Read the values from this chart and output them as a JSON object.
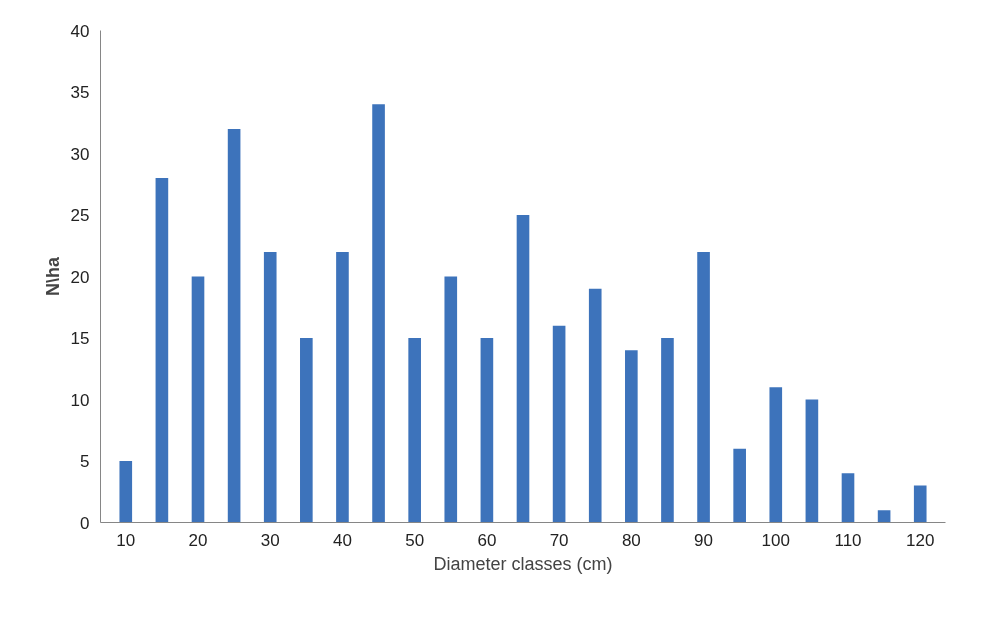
{
  "chart_data": {
    "type": "bar",
    "xlabel": "Diameter classes (cm)",
    "ylabel": "N\\ha",
    "categories": [
      "10",
      null,
      "20",
      null,
      "30",
      null,
      "40",
      null,
      "50",
      null,
      "60",
      null,
      "70",
      null,
      "80",
      null,
      "90",
      null,
      "100",
      null,
      "110",
      null,
      "120"
    ],
    "values": [
      5,
      28,
      20,
      32,
      22,
      15,
      22,
      34,
      15,
      20,
      15,
      25,
      16,
      19,
      14,
      15,
      22,
      6,
      11,
      10,
      4,
      1,
      3
    ],
    "color": "#3d73bb",
    "ylim": [
      0,
      40
    ],
    "yticks": [
      0,
      5,
      10,
      15,
      20,
      25,
      30,
      35,
      40
    ],
    "grid": false
  }
}
